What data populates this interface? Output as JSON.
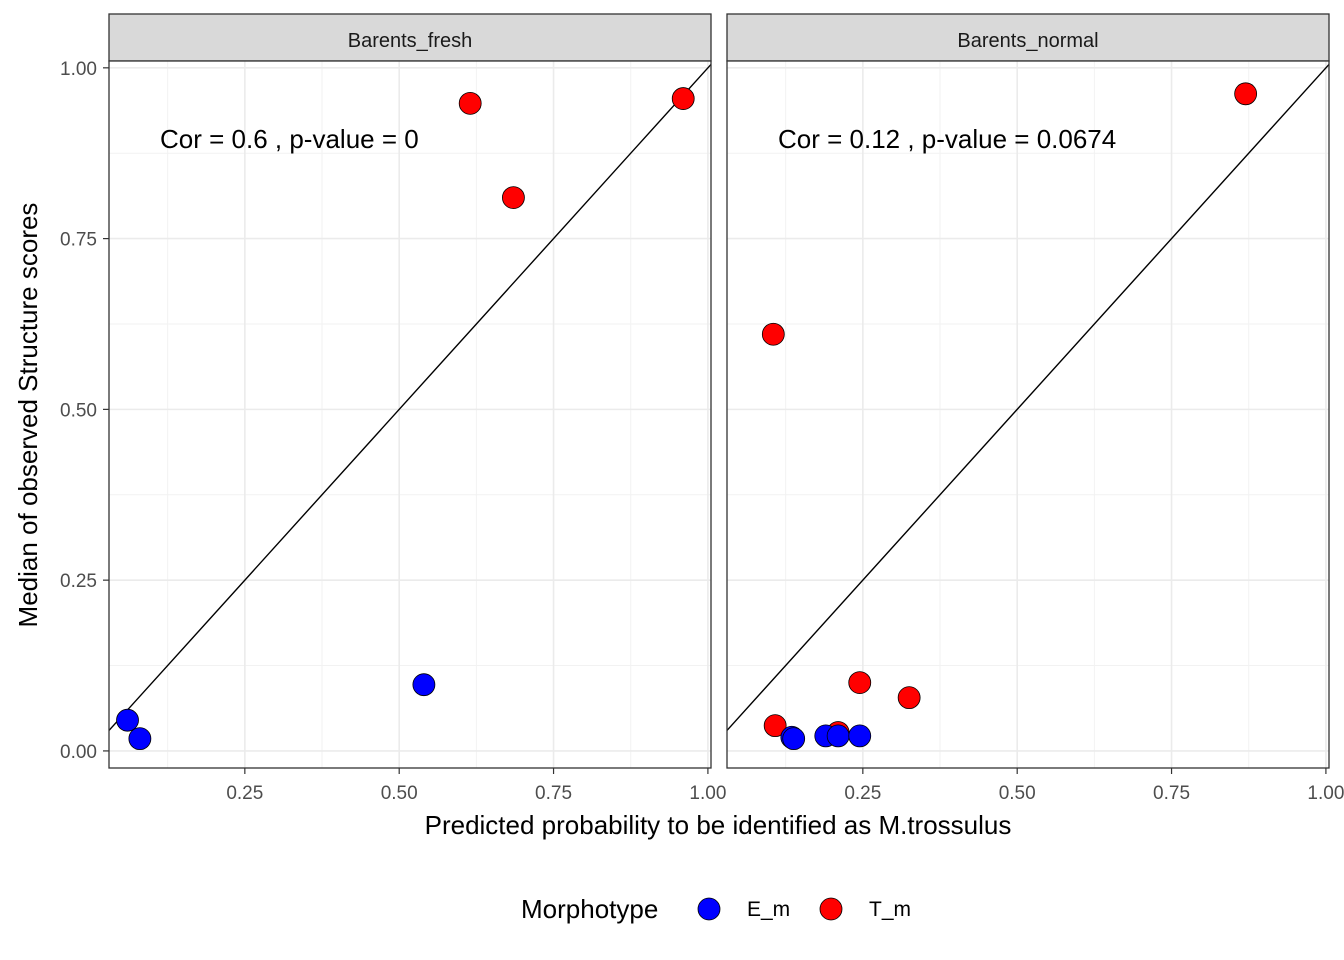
{
  "chart_data": {
    "type": "scatter",
    "xlabel": "Predicted probability to be identified as M.trossulus",
    "ylabel": "Median of observed Structure scores",
    "xlim": [
      0.03,
      1.005
    ],
    "ylim": [
      -0.025,
      1.01
    ],
    "xticks": [
      0.25,
      0.5,
      0.75,
      1.0
    ],
    "xtick_labels": [
      "0.25",
      "0.50",
      "0.75",
      "1.00"
    ],
    "yticks": [
      0.0,
      0.25,
      0.5,
      0.75,
      1.0
    ],
    "ytick_labels": [
      "0.00",
      "0.25",
      "0.50",
      "0.75",
      "1.00"
    ],
    "grid": true,
    "reference_line": "y = x",
    "legend": {
      "title": "Morphotype",
      "position": "bottom",
      "entries": [
        {
          "name": "E_m",
          "color": "#0000ff"
        },
        {
          "name": "T_m",
          "color": "#ff0000"
        }
      ]
    },
    "panels": [
      {
        "title": "Barents_fresh",
        "annotation": "Cor =  0.6 , p-value =  0",
        "series": [
          {
            "name": "E_m",
            "points": [
              [
                0.06,
                0.045
              ],
              [
                0.08,
                0.018
              ],
              [
                0.54,
                0.097
              ]
            ]
          },
          {
            "name": "T_m",
            "points": [
              [
                0.615,
                0.948
              ],
              [
                0.685,
                0.81
              ],
              [
                0.96,
                0.955
              ]
            ]
          }
        ]
      },
      {
        "title": "Barents_normal",
        "annotation": "Cor =  0.12 , p-value =  0.0674",
        "series": [
          {
            "name": "T_m",
            "points": [
              [
                0.105,
                0.61
              ],
              [
                0.108,
                0.037
              ],
              [
                0.21,
                0.027
              ],
              [
                0.245,
                0.1
              ],
              [
                0.325,
                0.078
              ],
              [
                0.87,
                0.962
              ]
            ]
          },
          {
            "name": "E_m",
            "points": [
              [
                0.135,
                0.02
              ],
              [
                0.138,
                0.018
              ],
              [
                0.19,
                0.022
              ],
              [
                0.21,
                0.022
              ],
              [
                0.245,
                0.022
              ]
            ]
          }
        ]
      }
    ]
  }
}
